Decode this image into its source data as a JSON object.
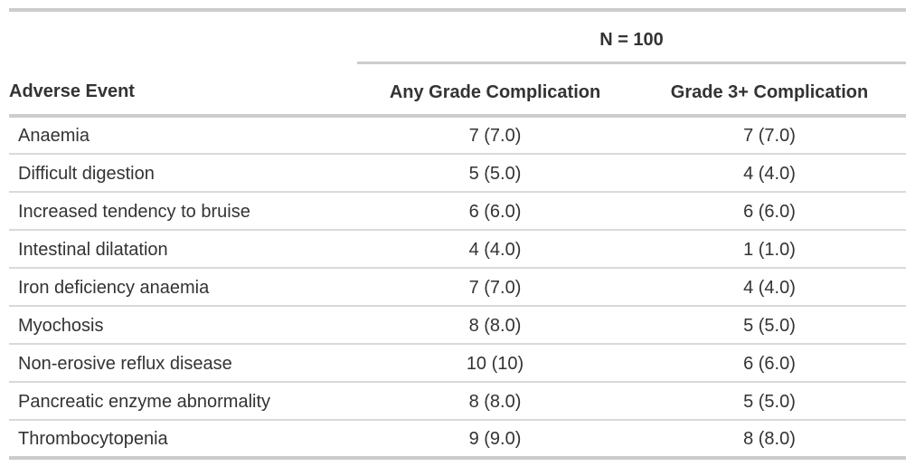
{
  "table": {
    "spanner_label": "N = 100",
    "columns": {
      "event": "Adverse Event",
      "any_grade": "Any Grade Complication",
      "grade3": "Grade 3+ Complication"
    },
    "rows": [
      {
        "event": "Anaemia",
        "any_grade": "7 (7.0)",
        "grade3": "7 (7.0)"
      },
      {
        "event": "Difficult digestion",
        "any_grade": "5 (5.0)",
        "grade3": "4 (4.0)"
      },
      {
        "event": "Increased tendency to bruise",
        "any_grade": "6 (6.0)",
        "grade3": "6 (6.0)"
      },
      {
        "event": "Intestinal dilatation",
        "any_grade": "4 (4.0)",
        "grade3": "1 (1.0)"
      },
      {
        "event": "Iron deficiency anaemia",
        "any_grade": "7 (7.0)",
        "grade3": "4 (4.0)"
      },
      {
        "event": "Myochosis",
        "any_grade": "8 (8.0)",
        "grade3": "5 (5.0)"
      },
      {
        "event": "Non-erosive reflux disease",
        "any_grade": "10 (10)",
        "grade3": "6 (6.0)"
      },
      {
        "event": "Pancreatic enzyme abnormality",
        "any_grade": "8 (8.0)",
        "grade3": "5 (5.0)"
      },
      {
        "event": "Thrombocytopenia",
        "any_grade": "9 (9.0)",
        "grade3": "8 (8.0)"
      }
    ],
    "colors": {
      "text": "#333333",
      "border_heavy": "#cccccc",
      "border_light": "#d9d9d9",
      "background": "#ffffff"
    }
  }
}
